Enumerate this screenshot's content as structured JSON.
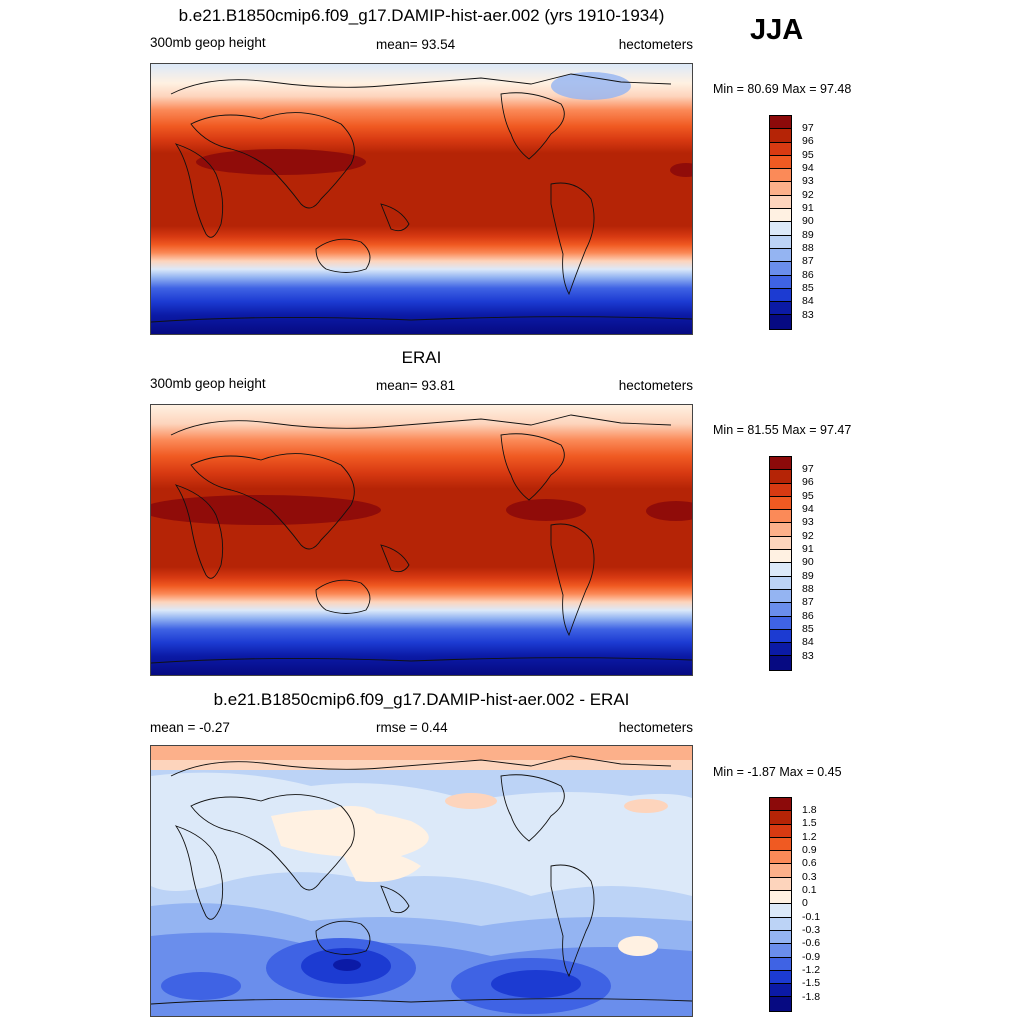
{
  "season": "JJA",
  "panels": [
    {
      "title": "b.e21.B1850cmip6.f09_g17.DAMIP-hist-aer.002 (yrs 1910-1934)",
      "left_label": "300mb geop height",
      "center_label": "mean=  93.54",
      "right_label": "hectometers",
      "minmax": "Min =  80.69 Max =  97.48",
      "colorbar": {
        "labels": [
          "97",
          "96",
          "95",
          "94",
          "93",
          "92",
          "91",
          "90",
          "89",
          "88",
          "87",
          "86",
          "85",
          "84",
          "83"
        ],
        "colors": [
          "#8c0a0a",
          "#b52406",
          "#d83a12",
          "#f05a22",
          "#fb8a58",
          "#fcb08a",
          "#fdd4bc",
          "#fff1e2",
          "#dce9f9",
          "#bcd3f6",
          "#94b4f2",
          "#6a8eec",
          "#3f63e4",
          "#1c3bd2",
          "#0b1aa6",
          "#060a82"
        ]
      }
    },
    {
      "title": "ERAI",
      "left_label": "300mb geop height",
      "center_label": "mean=  93.81",
      "right_label": "hectometers",
      "minmax": "Min =  81.55 Max =  97.47",
      "colorbar": {
        "labels": [
          "97",
          "96",
          "95",
          "94",
          "93",
          "92",
          "91",
          "90",
          "89",
          "88",
          "87",
          "86",
          "85",
          "84",
          "83"
        ],
        "colors": [
          "#8c0a0a",
          "#b52406",
          "#d83a12",
          "#f05a22",
          "#fb8a58",
          "#fcb08a",
          "#fdd4bc",
          "#fff1e2",
          "#dce9f9",
          "#bcd3f6",
          "#94b4f2",
          "#6a8eec",
          "#3f63e4",
          "#1c3bd2",
          "#0b1aa6",
          "#060a82"
        ]
      }
    },
    {
      "title": "b.e21.B1850cmip6.f09_g17.DAMIP-hist-aer.002 - ERAI",
      "left_label": "mean =  -0.27",
      "center_label": "rmse =   0.44",
      "right_label": "hectometers",
      "minmax": "Min =  -1.87 Max =   0.45",
      "colorbar": {
        "labels": [
          "1.8",
          "1.5",
          "1.2",
          "0.9",
          "0.6",
          "0.3",
          "0.1",
          "0",
          "-0.1",
          "-0.3",
          "-0.6",
          "-0.9",
          "-1.2",
          "-1.5",
          "-1.8"
        ],
        "colors": [
          "#8c0a0a",
          "#b52406",
          "#d83a12",
          "#f05a22",
          "#fb8a58",
          "#fcb08a",
          "#fdd4bc",
          "#fff1e2",
          "#dce9f9",
          "#bcd3f6",
          "#94b4f2",
          "#6a8eec",
          "#3f63e4",
          "#1c3bd2",
          "#0b1aa6",
          "#060a82"
        ]
      }
    }
  ]
}
